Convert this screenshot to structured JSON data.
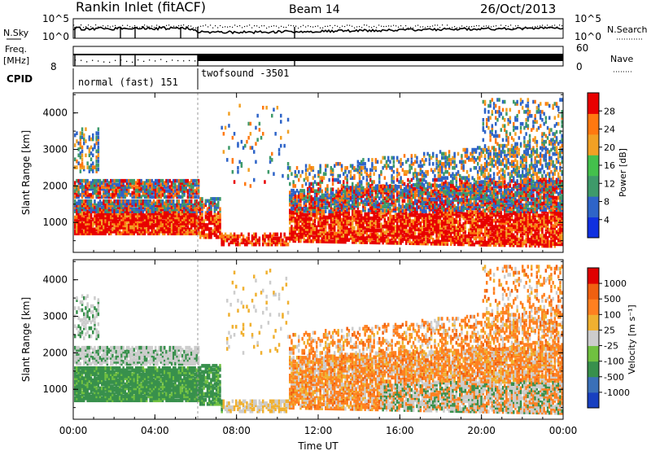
{
  "header": {
    "title": "Rankin Inlet (fitACF)",
    "beam": "Beam 14",
    "date": "26/Oct/2013"
  },
  "panels": {
    "nsky_label": "N.Sky",
    "nsearch_label": "N.Search",
    "left_ticks": [
      "10^5",
      "10^0"
    ],
    "right_ticks": [
      "10^5",
      "10^0"
    ],
    "freq_label": "Freq.",
    "freq_unit": "[MHz]",
    "freq_tick": "8",
    "nave_label": "Nave",
    "nave_ticks": [
      "60",
      "0"
    ],
    "cpid_label": "CPID",
    "cpid_segments": [
      "normal (fast) 151",
      "twofsound -3501"
    ]
  },
  "chart_data": [
    {
      "type": "heatmap",
      "name": "power-panel",
      "ylabel": "Slant Range [km]",
      "ylim": [
        180,
        4550
      ],
      "yticks": [
        "1000",
        "2000",
        "3000",
        "4000"
      ],
      "colorbar_label": "Power [dB]",
      "colorbar_ticks": [
        "28",
        "24",
        "20",
        "16",
        "12",
        "8",
        "4"
      ],
      "colors": [
        "#1030e0",
        "#2e64c8",
        "#3e9a6a",
        "#44c04c",
        "#f2a024",
        "#ff7810",
        "#e80000"
      ]
    },
    {
      "type": "heatmap",
      "name": "velocity-panel",
      "ylabel": "Slant Range [km]",
      "ylim": [
        180,
        4550
      ],
      "yticks": [
        "1000",
        "2000",
        "3000",
        "4000"
      ],
      "colorbar_label": "Velocity [m s⁻¹]",
      "colorbar_ticks": [
        "1000",
        "500",
        "100",
        "25",
        "-25",
        "-100",
        "-500",
        "-1000"
      ],
      "colors": [
        "#1840c0",
        "#3a70b8",
        "#38904c",
        "#70c040",
        "#cccccc",
        "#f0b030",
        "#ff8020",
        "#f06010",
        "#e00000"
      ]
    }
  ],
  "xaxis": {
    "label": "Time UT",
    "ticks": [
      "00:00",
      "04:00",
      "08:00",
      "12:00",
      "16:00",
      "20:00",
      "00:00"
    ]
  }
}
